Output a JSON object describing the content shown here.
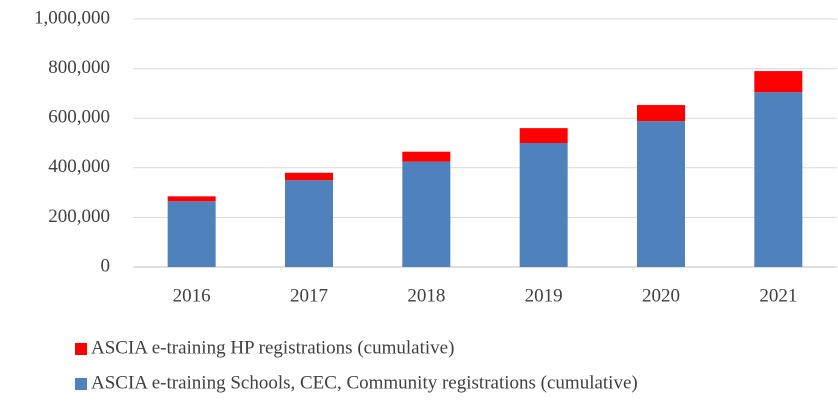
{
  "chart_data": {
    "type": "stacked_bar",
    "categories": [
      "2016",
      "2017",
      "2018",
      "2019",
      "2020",
      "2021"
    ],
    "series": [
      {
        "name": "ASCIA e-training Schools, CEC, Community registrations (cumulative)",
        "color": "#4f81bd",
        "values": [
          265000,
          350000,
          425000,
          500000,
          588000,
          705000
        ]
      },
      {
        "name": "ASCIA e-training HP registrations (cumulative)",
        "color": "#ff0000",
        "values": [
          20000,
          30000,
          40000,
          60000,
          65000,
          85000
        ]
      }
    ],
    "ylim": [
      0,
      1000000
    ],
    "yticks": [
      0,
      {
        "value": 200000,
        "label": "200,000"
      },
      {
        "value": 400000,
        "label": "400,000"
      },
      {
        "value": 600000,
        "label": "600,000"
      },
      {
        "value": 800000,
        "label": "800,000"
      },
      {
        "value": 1000000,
        "label": "1,000,000"
      }
    ],
    "grid": true,
    "legend": "bottom"
  }
}
